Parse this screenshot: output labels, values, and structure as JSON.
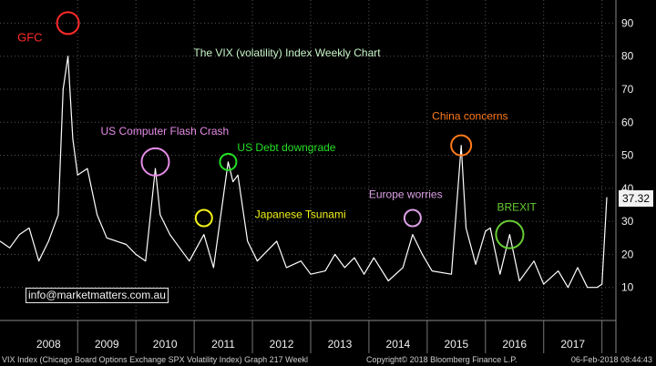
{
  "chart_data": {
    "type": "line",
    "title": "The VIX (volatility) Index Weekly Chart",
    "y_axis": {
      "ticks": [
        10,
        20,
        30,
        40,
        50,
        60,
        70,
        80,
        90
      ],
      "range": [
        0,
        97
      ],
      "position": "right"
    },
    "x_axis": {
      "labels": [
        "2008",
        "2009",
        "2010",
        "2011",
        "2012",
        "2013",
        "2014",
        "2015",
        "2016",
        "2017"
      ],
      "range": [
        "2007-09",
        "2018-02"
      ]
    },
    "grid": true,
    "last_value": "37.32",
    "series": [
      {
        "color": "#ffffff",
        "points": [
          [
            "2007-09",
            24
          ],
          [
            "2007-11",
            22
          ],
          [
            "2008-01",
            26
          ],
          [
            "2008-03",
            28
          ],
          [
            "2008-05",
            18
          ],
          [
            "2008-07",
            24
          ],
          [
            "2008-09",
            32
          ],
          [
            "2008-10",
            70
          ],
          [
            "2008-11",
            80
          ],
          [
            "2008-12",
            55
          ],
          [
            "2009-01",
            44
          ],
          [
            "2009-03",
            46
          ],
          [
            "2009-05",
            32
          ],
          [
            "2009-07",
            25
          ],
          [
            "2009-09",
            24
          ],
          [
            "2009-11",
            23
          ],
          [
            "2010-01",
            20
          ],
          [
            "2010-03",
            18
          ],
          [
            "2010-05",
            46
          ],
          [
            "2010-06",
            32
          ],
          [
            "2010-08",
            26
          ],
          [
            "2010-10",
            22
          ],
          [
            "2010-12",
            18
          ],
          [
            "2011-03",
            26
          ],
          [
            "2011-05",
            16
          ],
          [
            "2011-08",
            48
          ],
          [
            "2011-09",
            42
          ],
          [
            "2011-10",
            44
          ],
          [
            "2011-12",
            24
          ],
          [
            "2012-02",
            18
          ],
          [
            "2012-06",
            24
          ],
          [
            "2012-08",
            16
          ],
          [
            "2012-11",
            18
          ],
          [
            "2013-01",
            14
          ],
          [
            "2013-04",
            15
          ],
          [
            "2013-06",
            20
          ],
          [
            "2013-08",
            16
          ],
          [
            "2013-10",
            19
          ],
          [
            "2013-12",
            14
          ],
          [
            "2014-02",
            19
          ],
          [
            "2014-05",
            12
          ],
          [
            "2014-08",
            16
          ],
          [
            "2014-10",
            26
          ],
          [
            "2014-12",
            20
          ],
          [
            "2015-02",
            15
          ],
          [
            "2015-06",
            14
          ],
          [
            "2015-08",
            53
          ],
          [
            "2015-09",
            28
          ],
          [
            "2015-11",
            17
          ],
          [
            "2016-01",
            27
          ],
          [
            "2016-02",
            28
          ],
          [
            "2016-04",
            14
          ],
          [
            "2016-06",
            26
          ],
          [
            "2016-08",
            12
          ],
          [
            "2016-11",
            18
          ],
          [
            "2017-01",
            11
          ],
          [
            "2017-04",
            15
          ],
          [
            "2017-06",
            10
          ],
          [
            "2017-08",
            16
          ],
          [
            "2017-10",
            10
          ],
          [
            "2017-12",
            10
          ],
          [
            "2018-01",
            11
          ],
          [
            "2018-02",
            37.32
          ]
        ]
      }
    ],
    "annotations": [
      {
        "text": "GFC",
        "color": "#ff2a2a",
        "x": "2008-11",
        "y": 90,
        "circle_color": "#ff2a2a"
      },
      {
        "text": "US Computer Flash Crash",
        "color": "#e58ce6",
        "x": "2010-05",
        "y": 48,
        "circle_color": "#e58ce6"
      },
      {
        "text": "US Debt downgrade",
        "color": "#22e022",
        "x": "2011-08",
        "y": 48,
        "circle_color": "#22e022"
      },
      {
        "text": "Japanese Tsunami",
        "color": "#f2f21a",
        "x": "2011-03",
        "y": 31,
        "circle_color": "#f2f21a"
      },
      {
        "text": "Europe worries",
        "color": "#dca0e6",
        "x": "2014-10",
        "y": 31,
        "circle_color": "#dca0e6"
      },
      {
        "text": "China concerns",
        "color": "#ff7a1a",
        "x": "2015-08",
        "y": 53,
        "circle_color": "#ff7a1a"
      },
      {
        "text": "BREXIT",
        "color": "#66cc33",
        "x": "2016-06",
        "y": 26,
        "circle_color": "#66cc33"
      }
    ]
  },
  "overlay": {
    "email": "info@marketmatters.com.au"
  },
  "footer": {
    "left": "VIX Index (Chicago Board Options Exchange SPX Volatility Index) Graph 217  Weekl",
    "middle": "Copyright© 2018 Bloomberg Finance L.P.",
    "right": "06-Feb-2018 08:44:43"
  },
  "colors": {
    "background": "#000000",
    "line": "#ffffff",
    "grid": "#555555",
    "axis_text": "#f0f0f0"
  }
}
